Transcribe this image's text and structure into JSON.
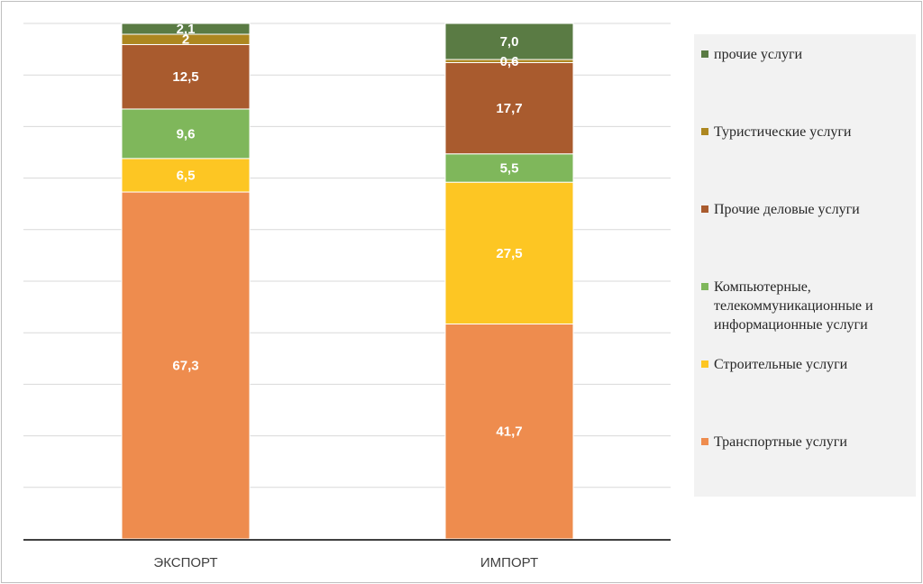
{
  "chart_data": {
    "type": "bar",
    "stacked": true,
    "categories": [
      "ЭКСПОРТ",
      "ИМПОРТ"
    ],
    "ylim": [
      0,
      100
    ],
    "grid": true,
    "legend_position": "right",
    "series": [
      {
        "name": "Транспортные услуги",
        "color": "#ee8c4e",
        "values": [
          67.3,
          41.7
        ],
        "labels": [
          "67,3",
          "41,7"
        ]
      },
      {
        "name": "Строительные услуги",
        "color": "#fdc623",
        "values": [
          6.5,
          27.5
        ],
        "labels": [
          "6,5",
          "27,5"
        ]
      },
      {
        "name": "Компьютерные, телекоммуникационные и информационные услуги",
        "color": "#7fb75b",
        "values": [
          9.6,
          5.5
        ],
        "labels": [
          "9,6",
          "5,5"
        ]
      },
      {
        "name": "Прочие деловые услуги",
        "color": "#a95b2e",
        "values": [
          12.5,
          17.7
        ],
        "labels": [
          "12,5",
          "17,7"
        ]
      },
      {
        "name": "Туристические услуги",
        "color": "#ad8720",
        "values": [
          2,
          0.6
        ],
        "labels": [
          "2",
          "0,6"
        ]
      },
      {
        "name": "прочие услуги",
        "color": "#5a7b44",
        "values": [
          2.1,
          7.0
        ],
        "labels": [
          "2,1",
          "7,0"
        ]
      }
    ]
  }
}
